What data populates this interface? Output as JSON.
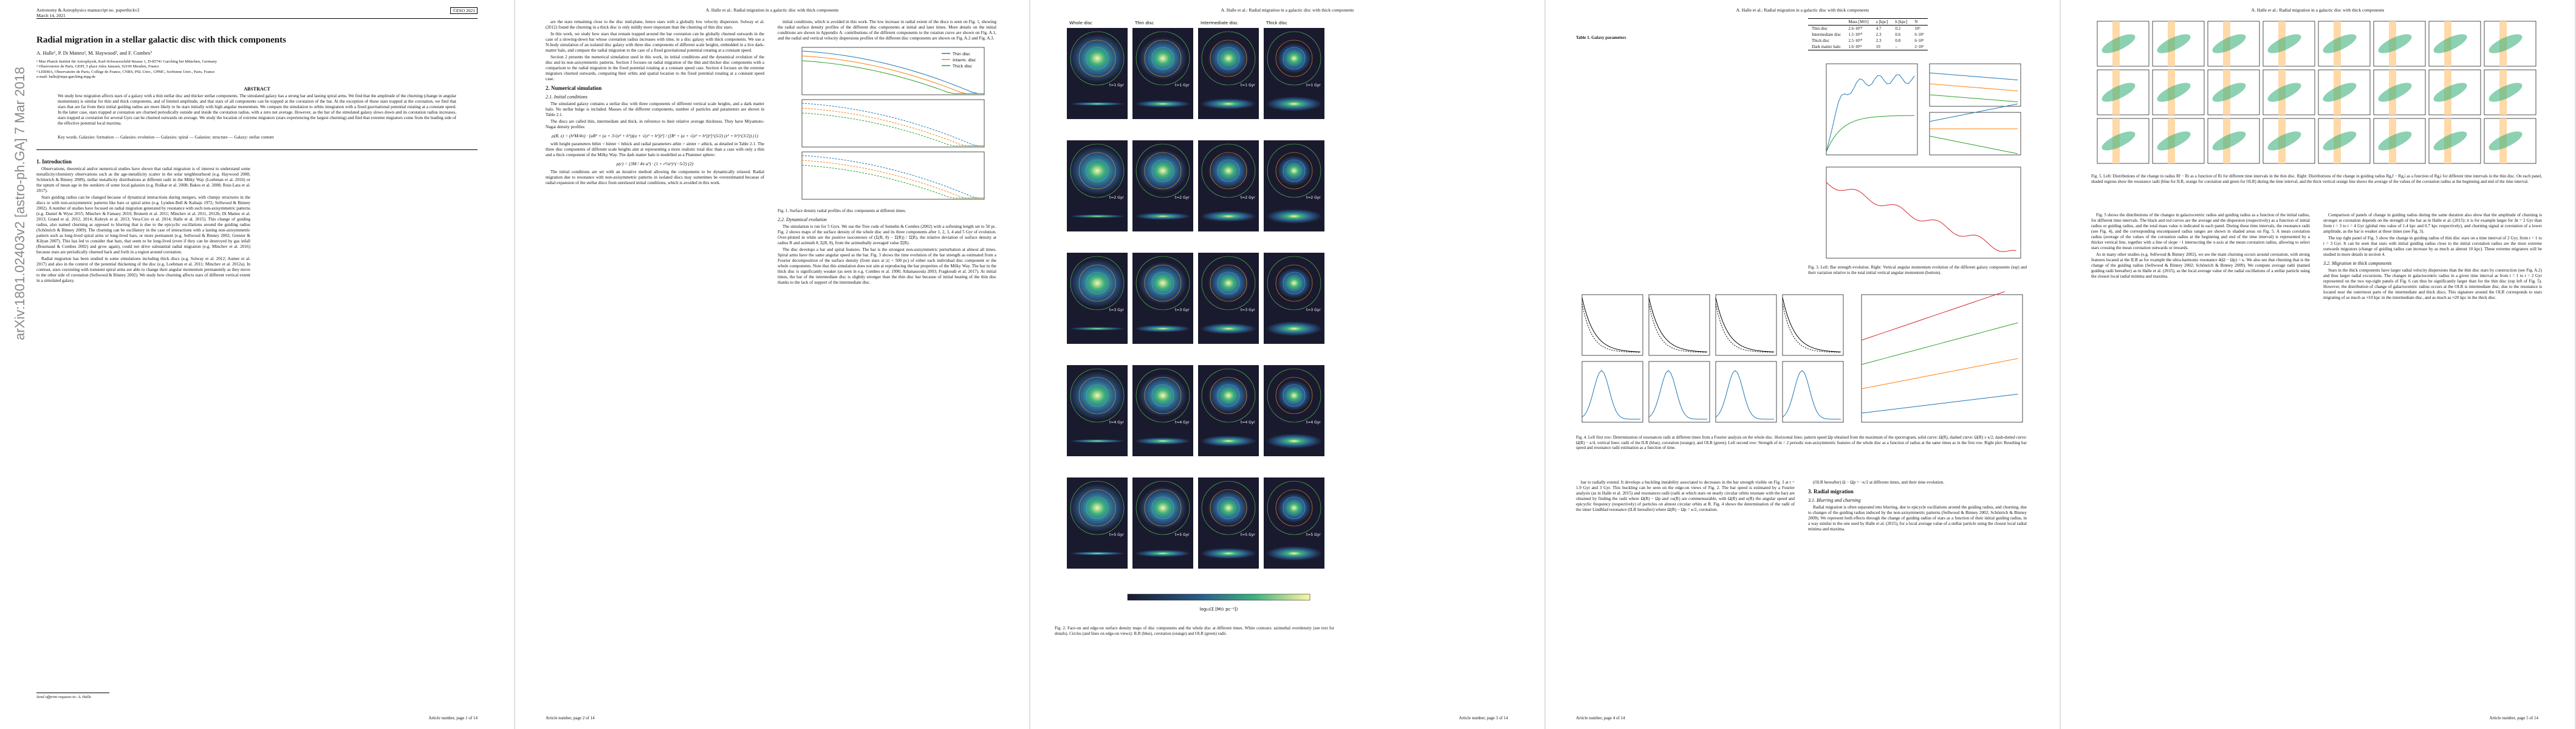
{
  "running_head": "A. Halle et al.: Radial migration in a galactic disc with thick components",
  "page1": {
    "journal": "Astronomy & Astrophysics manuscript no. paperthickv2",
    "copyright": "©ESO 2021",
    "date": "March 14, 2021",
    "title": "Radial migration in a stellar galactic disc with thick components",
    "authors": "A. Halle¹, P. Di Matteo², M. Haywood², and F. Combes³",
    "affiliations": [
      "¹ Max Planck Institut für Astrophysik, Karl-Schwarzschild-Strasse 1, D-85741 Garching bei München, Germany",
      "² Observatoire de Paris, GEPI, 5 place Jules Janssen, 92190 Meudon, France",
      "³ LERMA, Observatoire de Paris, Collège de France, CNRS, PSL Univ., UPMC, Sorbonne Univ., Paris, France",
      "e-mail: halle@mpa-garching.mpg.de"
    ],
    "abstract_heading": "ABSTRACT",
    "abstract": "We study how migration affects stars of a galaxy with a thin stellar disc and thicker stellar components. The simulated galaxy has a strong bar and lasting spiral arms. We find that the amplitude of the churning (change in angular momentum) is similar for thin and thick components, and of limited amplitude, and that stars of all components can be trapped at the corotation of the bar. At the exception of those stars trapped at the corotation, we find that stars that are far from their initial guiding radius are more likely to be stars initially with high angular momentum. We compare the simulation to orbits integration with a fixed gravitational potential rotating at a constant speed. In the latter case, stars trapped at corotation are churned periodically outside and inside the corotation radius, with a zero net average. However, as the bar of the simulated galaxy slows down and its corotation radius increases, stars trapped at corotation for several Gyrs can be churned outwards on average. We study the location of extreme migrators (stars experiencing the largest churning) and find that extreme migrators come from the leading side of the effective potential local maxima.",
    "keywords": "Key words. Galaxies: formation — Galaxies: evolution — Galaxies: spiral — Galaxies: structure — Galaxy: stellar content",
    "arxiv": "arXiv:1801.02403v2 [astro-ph.GA] 7 Mar 2018",
    "intro_heading": "1. Introduction",
    "intro": [
      "Observations, theoretical and/or numerical studies have shown that radial migration is of interest to understand some metallicity/chemistry observations such as the age-metallicity scatter in the solar neighbourhood (e.g. Haywood 2008; Schönrich & Binney 2009), stellar metallicity distributions at different radii in the Milky Way (Loebman et al. 2016) or the upturn of mean age in the outskirts of some local galaxies (e.g. Roškar et al. 2008; Bakos et al. 2008; Ruiz-Lara et al. 2017).",
      "Stars guiding radius can be changed because of dynamical interactions during mergers, with clumpy structures in the discs or with non-axisymmetric patterns like bars or spiral arms (e.g. Lynden-Bell & Kalnajs 1972; Sellwood & Binney 2002). A number of studies have focused on radial migration generated by resonance with such non-axisymmetric patterns (e.g. Daniel & Wyse 2015; Minchev & Famaey 2010; Brunetti et al. 2011; Minchev et al. 2011, 2012b; Di Matteo et al. 2013; Grand et al. 2012, 2014; Kubryk et al. 2013; Vera-Ciro et al. 2014; Halle et al. 2015). This change of guiding radius, also named churning as opposed to blurring that is due to the epicyclic oscillations around the guiding radius (Schönrich & Binney 2009). The churning can be oscillatory in the case of interactions with a lasting non-axisymmetric pattern such as long-lived spiral arms or long-lived bars, or more permanent (e.g. Sellwood & Binney 2002; Grenier & Kilyan 2007). This has led to consider that bars, that seem to be long-lived (even if they can be destroyed by gas infall (Bournaud & Combes 2002) and grow again), could not drive substantial radial migration (e.g. Minchev et al. 2016) because stars are periodically churned back and forth in a region around corotation.",
      "Radial migration has been studied in some simulations including thick discs (e.g. Solway et al. 2012; Aumer et al. 2017) and also in the context of the potential thickening of the disc (e.g. Loebman et al. 2011; Minchev et al. 2012a). In contrast, stars coexisting with transient spiral arms are able to change their angular momentum permanently as they move to the other side of corotation (Sellwood & Binney 2002). We study how churning affects stars of different vertical extent in a simulated galaxy."
    ],
    "footnote": "Send offprint requests to: A. Halle",
    "page_number": "Article number, page 1 of 14"
  },
  "page2": {
    "left": [
      "are the stars remaining close to the disc mid-plane, hence stars with a globally low velocity dispersion. Solway et al. (2012) found the churning in a thick disc is only mildly more important than the churning of thin disc stars.",
      "In this work, we study how stars that remain trapped around the bar corotation can be globally churned outwards in the case of a slowing-down bar whose corotation radius increases with time, in a disc galaxy with thick components. We use a N-body simulation of an isolated disc galaxy with three disc components of different scale heights, embedded in a live dark-matter halo, and compare the radial migration to the case of a fixed gravitational potential rotating at a constant speed.",
      "Section 2 presents the numerical simulation used in this work, its initial conditions and the dynamical evolution of the disc and its non-axisymmetric patterns. Section 3 focuses on radial migration of the thin and thicker disc components with a comparison to the radial migration in the fixed potential rotating at a constant speed case. Section 4 focuses on the extreme migrators churned outwards, comparing their orbits and spatial location to the fixed potential rotating at a constant speed case."
    ],
    "sec2_heading": "2. Numerical simulation",
    "sec21_heading": "2.1. Initial conditions",
    "sec21": [
      "The simulated galaxy contains a stellar disc with three components of different vertical scale heights, and a dark matter halo. No stellar bulge is included. Masses of the different components, number of particles and parameters are shown in Table 2.1.",
      "The discs are called thin, intermediate and thick, in reference to their relative average thickness. They have Miyamoto-Nagai density profiles:"
    ],
    "eq1": "ρ(R, z) = (h²M/4π) · [aR² + (a + 3√(z² + h²))(a + √(z² + h²))²] / ([R² + (a + √(z² + h²))²]^(5/2) (z² + h²)^(3/2))   (1)",
    "sec21b": "with height parameters hthin < hinter < hthick and radial parameters athin > ainter > athick, as detailed in Table 2.1. The three disc components of different scale heights aim at representing a more realistic total disc than a case with only a thin and a thick component of the Milky Way. The dark matter halo is modelled as a Plummer sphere:",
    "eq2": "ρ(r) = (3M / 4π a³) · (1 + r²/a²)^(−5/2)   (2)",
    "sec21c": "The initial conditions are set with an iterative method allowing the components to be dynamically relaxed. Radial migration due to resonance with non-axisymmetric patterns in isolated discs may sometimes be overestimated because of radial expansion of the stellar discs from unrelaxed initial conditions, which is avoided in this work.",
    "right": [
      "initial conditions, which is avoided in this work. The low increase in radial extent of the discs is seen on Fig. 1, showing the radial surface density profiles of the different disc components at initial and later times. More details on the initial conditions are shown in Appendix A: contributions of the different components to the rotation curve are shown on Fig. A.1, and the radial and vertical velocity dispersions profiles of the different disc components are shown on Fig. A.2 and Fig. A.3."
    ],
    "fig1_legend": [
      "Thin disc",
      "Interm. disc",
      "Thick disc"
    ],
    "fig1_caption": "Fig. 1. Surface density radial profiles of disc components at different times.",
    "sec22_heading": "2.2. Dynamical evolution",
    "sec22": [
      "The simulation is run for 5 Gyrs. We use the Tree code of Semelin & Combes (2002) with a softening length set to 50 pc. Fig. 2 shows maps of the surface density of the whole disc and its three components after 1, 2, 3, 4 and 5 Gyr of evolution. Over-plotted in white are the positive isocontours of (Σ(R, θ) − Σ̄(R)) / Σ̄(R), the relative deviation of surface density at radius R and azimuth θ, Σ(R, θ), from the azimuthally averaged value Σ̄(R).",
      "The disc develops a bar and spiral features. The bar is the strongest non-axisymmetric perturbation at almost all times. Spiral arms have the same angular speed as the bar. Fig. 3 shows the time evolution of the bar strength as estimated from a Fourier decomposition of the surface density (from stars at |z| < 500 pc) of either each individual disc component or the whole components. Note that this simulation does not aim at reproducing the bar properties of the Milky Way. The bar in the thick disc is significantly weaker (as seen in e.g. Combes et al. 1990; Athanassoula 2003; Fragkoudi et al. 2017). At initial times, the bar of the intermediate disc is slightly stronger than the thin disc bar because of initial heating of the thin disc thanks to the lack of support of the intermediate disc."
    ],
    "page_number": "Article number, page 2 of 14"
  },
  "page3": {
    "fig2_columns": [
      "Whole disc",
      "Thin disc",
      "Intermediate disc",
      "Thick disc"
    ],
    "fig2_rows": [
      "t=1 Gyr",
      "t=2 Gyr",
      "t=3 Gyr",
      "t=4 Gyr",
      "t=5 Gyr"
    ],
    "fig2_colorbar": "log₁₀(Σ [M⊙ pc⁻²])",
    "fig2_caption": "Fig. 2. Face-on and edge-on surface density maps of disc components and the whole disc at different times. White contours: azimuthal overdensity (see text for details). Circles (and lines on edge-on views): ILR (blue), corotation (orange) and OLR (green) radii.",
    "page_number": "Article number, page 3 of 14"
  },
  "page4": {
    "table_caption": "Table 1. Galaxy parameters",
    "table_header": [
      "",
      "Mass [M⊙]",
      "a [kpc]",
      "h [kpc]",
      "N"
    ],
    "table_rows": [
      [
        "Thin disc",
        "2.6·10¹⁰",
        "4.7",
        "0.2",
        "10⁶"
      ],
      [
        "Intermediate disc",
        "1.5·10¹⁰",
        "2.3",
        "0.6",
        "6·10⁵"
      ],
      [
        "Thick disc",
        "2.5·10¹⁰",
        "2.3",
        "0.8",
        "6·10⁵"
      ],
      [
        "Dark matter halo",
        "1.6·10¹¹",
        "10",
        "–",
        "2·10⁶"
      ]
    ],
    "fig3_caption": "Fig. 3. Left: Bar strength evolution. Right: Vertical angular momentum evolution of the different galaxy components (top) and their variation relative to the total initial vertical angular momentum (bottom).",
    "fig4_caption": "Fig. 4. Left first row: Determination of resonances radii at different times from a Fourier analysis on the whole disc. Horizontal lines: pattern speed Ωp obtained from the maximum of the spectrogram, solid curve: Ω(R), dashed curve: Ω(R) ± κ/2, dash-dotted curve: Ω(R) − κ/4, vertical lines: radii of the ILR (blue), corotation (orange), and OLR (green). Left second row: Strength of m = 2 periodic non-axisymmetric features of the whole disc as a function of radius at the same times as in the first row. Right plot: Resulting bar speed and resonance radii estimation as a function of time.",
    "left": [
      "bar to radially extend. It develops a buckling instability associated to decreases in the bar strength visible on Fig. 3 at t = 1.9 Gyr and 3 Gyr. This buckling can be seen on the edge-on views of Fig. 2. The bar speed is estimated by a Fourier analysis (as in Halle et al. 2015) and resonances radii (radii at which stars on nearly circular orbits resonate with the bar) are obtained by finding the radii where Ω(R) − Ωp and ±κ(R) are commensurable, with Ω(R) and κ(R) the angular speed and epicyclic frequency (respectively) of particles on almost circular orbits at R. Fig. 4 shows the determination of the radii of the inner Lindblad resonance (ILR hereafter) where Ω(R) − Ωp = κ/2, corotation."
    ],
    "right": [
      "(OLR hereafter) Ω − Ωp = −κ/2 at different times, and their time evolution."
    ],
    "sec3_heading": "3. Radial migration",
    "sec31_heading": "3.1. Blurring and churning",
    "sec31": "Radial migration is often separated into blurring, due to epicycle oscillations around the guiding radius, and churning, due to changes of the guiding radius induced by the non-axisymmetric patterns (Sellwood & Binney 2002; Schönrich & Binney 2009). We represent both effects through the change of guiding radius of stars as a function of their initial guiding radius, in a way similar to the one used by Halle et al. (2015), for a local average value of a stellar particle using the closest local radial minima and maxima.",
    "page_number": "Article number, page 4 of 14"
  },
  "page5": {
    "fig5_caption": "Fig. 5. Left: Distributions of the change in radius Rf − Ri as a function of Ri for different time intervals in the thin disc. Right: Distributions of the change in guiding radius Rg,f − Rg,i as a function of Rg,i for different time intervals in the thin disc. On each panel, shaded regions show the resonance radii (blue for ILR, orange for corotation and green for OLR) during the time interval, and the thick vertical orange line shows the average of the values of the corotation radius at the beginning and end of the time interval.",
    "left": [
      "Fig. 5 shows the distributions of the changes in galactocentric radius and guiding radius as a function of the initial radius, for different time intervals. The black and red curves are the average and the dispersion (respectively) as a function of initial radius or guiding radius, and the total mass value is indicated in each panel. During these time intervals, the resonance radii (see Fig. 4), and the corresponding encompassed radius ranges are shown in shaded areas on Fig. 5. A mean corotation radius (average of the values of the corotation radius at the beginning and end of the time interval) is represented by a thicker vertical line, together with a line of slope −1 intersecting the x-axis at the mean corotation radius, allowing to select stars crossing the mean corotation outwards or inwards.",
      "As in many other studies (e.g. Sellwood & Binney 2002), we see the main churning occurs around corotation, with strong features located at the ILR as for example the ultra-harmonic resonance 4(Ω − Ωp) = κ. We also see that churning that is the change of the guiding radius (Sellwood & Binney 2002; Schönrich & Binney 2009). We compute average radii (named guiding radii hereafter) as in Halle et al. (2015), as the local average value of the radial oscillations of a stellar particle using the closest local radial minima and maxima."
    ],
    "right": [
      "Comparison of panels of change in guiding radius during the same duration also show that the amplitude of churning is stronger at corotation depends on the strength of the bar as in Halle et al. (2015): it is for example larger for Δt = 2 Gyr than from t = 3 to t = 4 Gyr (global rms value of 1.4 kpc and 0.7 kpc respectively), and churning signal at corotation of a lower amplitude, as the bar is weaker at these times (see Fig. 3).",
      "The top right panel of Fig. 5 show the change in guiding radius of thin disc stars on a time interval of 2 Gyr, from t = 1 to t = 3 Gyr. It can be seen that stars with initial guiding radius close to the initial corotation radius are the most extreme outwards migrators (change of guiding radius can increase by as much as almost 10 kpc). These extreme migrators will be studied in more details in section 4."
    ],
    "sec32_heading": "3.2. Migration in thick components",
    "sec32": "Stars in the thick components have larger radial velocity dispersions than the thin disc stars by construction (see Fig. A.2) and thus larger radial excursions. The changes in galactocentric radius in a given time interval as from t = 1 to t = 2 Gyr represented on the two top-right panels of Fig. 6 can thus be significantly larger than for the thin disc (top left of Fig. 5). However, the distribution of change of galactocentric radius occurs at the OLR is intermediate disc, due to the resonance is located near the outermost parts of the intermediate and thick discs. This signature around the OLR corresponds to stars migrating of as much as ≈10 kpc in the intermediate disc, and as much as ≈20 kpc in the thick disc.",
    "page_number": "Article number, page 5 of 14"
  }
}
